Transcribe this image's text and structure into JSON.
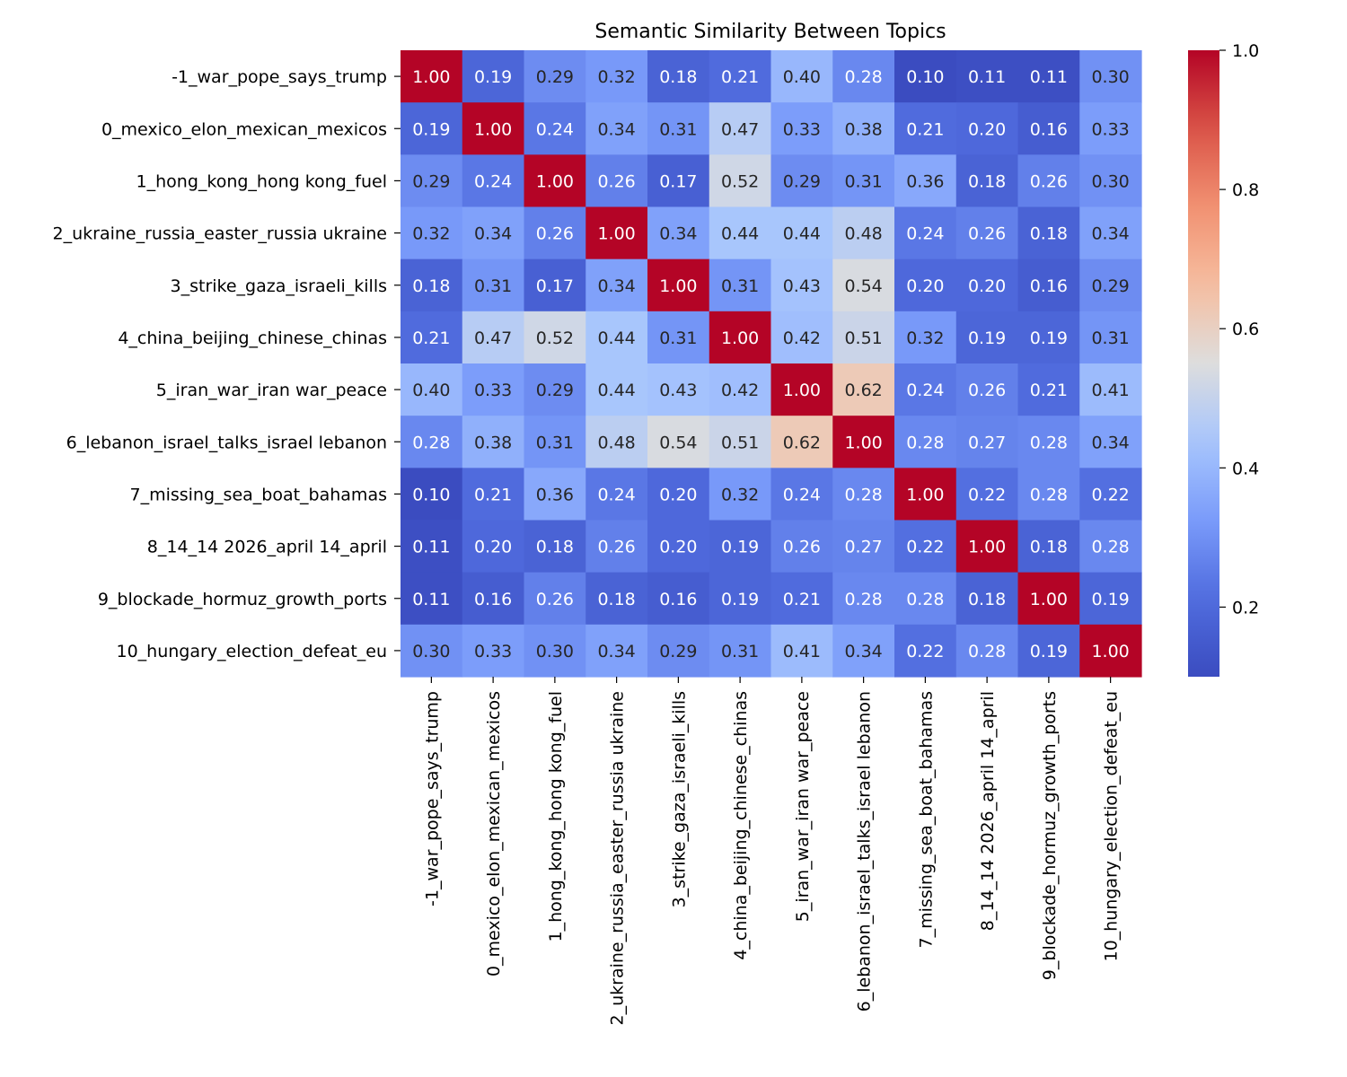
{
  "chart_data": {
    "type": "heatmap",
    "title": "Semantic Similarity Between Topics",
    "labels": [
      "-1_war_pope_says_trump",
      "0_mexico_elon_mexican_mexicos",
      "1_hong_kong_hong kong_fuel",
      "2_ukraine_russia_easter_russia ukraine",
      "3_strike_gaza_israeli_kills",
      "4_china_beijing_chinese_chinas",
      "5_iran_war_iran war_peace",
      "6_lebanon_israel_talks_israel lebanon",
      "7_missing_sea_boat_bahamas",
      "8_14_14 2026_april 14_april",
      "9_blockade_hormuz_growth_ports",
      "10_hungary_election_defeat_eu"
    ],
    "values": [
      [
        1.0,
        0.19,
        0.29,
        0.32,
        0.18,
        0.21,
        0.4,
        0.28,
        0.1,
        0.11,
        0.11,
        0.3
      ],
      [
        0.19,
        1.0,
        0.24,
        0.34,
        0.31,
        0.47,
        0.33,
        0.38,
        0.21,
        0.2,
        0.16,
        0.33
      ],
      [
        0.29,
        0.24,
        1.0,
        0.26,
        0.17,
        0.52,
        0.29,
        0.31,
        0.36,
        0.18,
        0.26,
        0.3
      ],
      [
        0.32,
        0.34,
        0.26,
        1.0,
        0.34,
        0.44,
        0.44,
        0.48,
        0.24,
        0.26,
        0.18,
        0.34
      ],
      [
        0.18,
        0.31,
        0.17,
        0.34,
        1.0,
        0.31,
        0.43,
        0.54,
        0.2,
        0.2,
        0.16,
        0.29
      ],
      [
        0.21,
        0.47,
        0.52,
        0.44,
        0.31,
        1.0,
        0.42,
        0.51,
        0.32,
        0.19,
        0.19,
        0.31
      ],
      [
        0.4,
        0.33,
        0.29,
        0.44,
        0.43,
        0.42,
        1.0,
        0.62,
        0.24,
        0.26,
        0.21,
        0.41
      ],
      [
        0.28,
        0.38,
        0.31,
        0.48,
        0.54,
        0.51,
        0.62,
        1.0,
        0.28,
        0.27,
        0.28,
        0.34
      ],
      [
        0.1,
        0.21,
        0.36,
        0.24,
        0.2,
        0.32,
        0.24,
        0.28,
        1.0,
        0.22,
        0.28,
        0.22
      ],
      [
        0.11,
        0.2,
        0.18,
        0.26,
        0.2,
        0.19,
        0.26,
        0.27,
        0.22,
        1.0,
        0.18,
        0.28
      ],
      [
        0.11,
        0.16,
        0.26,
        0.18,
        0.16,
        0.19,
        0.21,
        0.28,
        0.28,
        0.18,
        1.0,
        0.19
      ],
      [
        0.3,
        0.33,
        0.3,
        0.34,
        0.29,
        0.31,
        0.41,
        0.34,
        0.22,
        0.28,
        0.19,
        1.0
      ]
    ],
    "colormap": "coolwarm",
    "vmin": 0.1,
    "vmax": 1.0,
    "colorbar_ticks": [
      "0.2",
      "0.4",
      "0.6",
      "0.8",
      "1.0"
    ],
    "value_format": "2 decimals",
    "grid": false,
    "legend": "colorbar-right"
  }
}
